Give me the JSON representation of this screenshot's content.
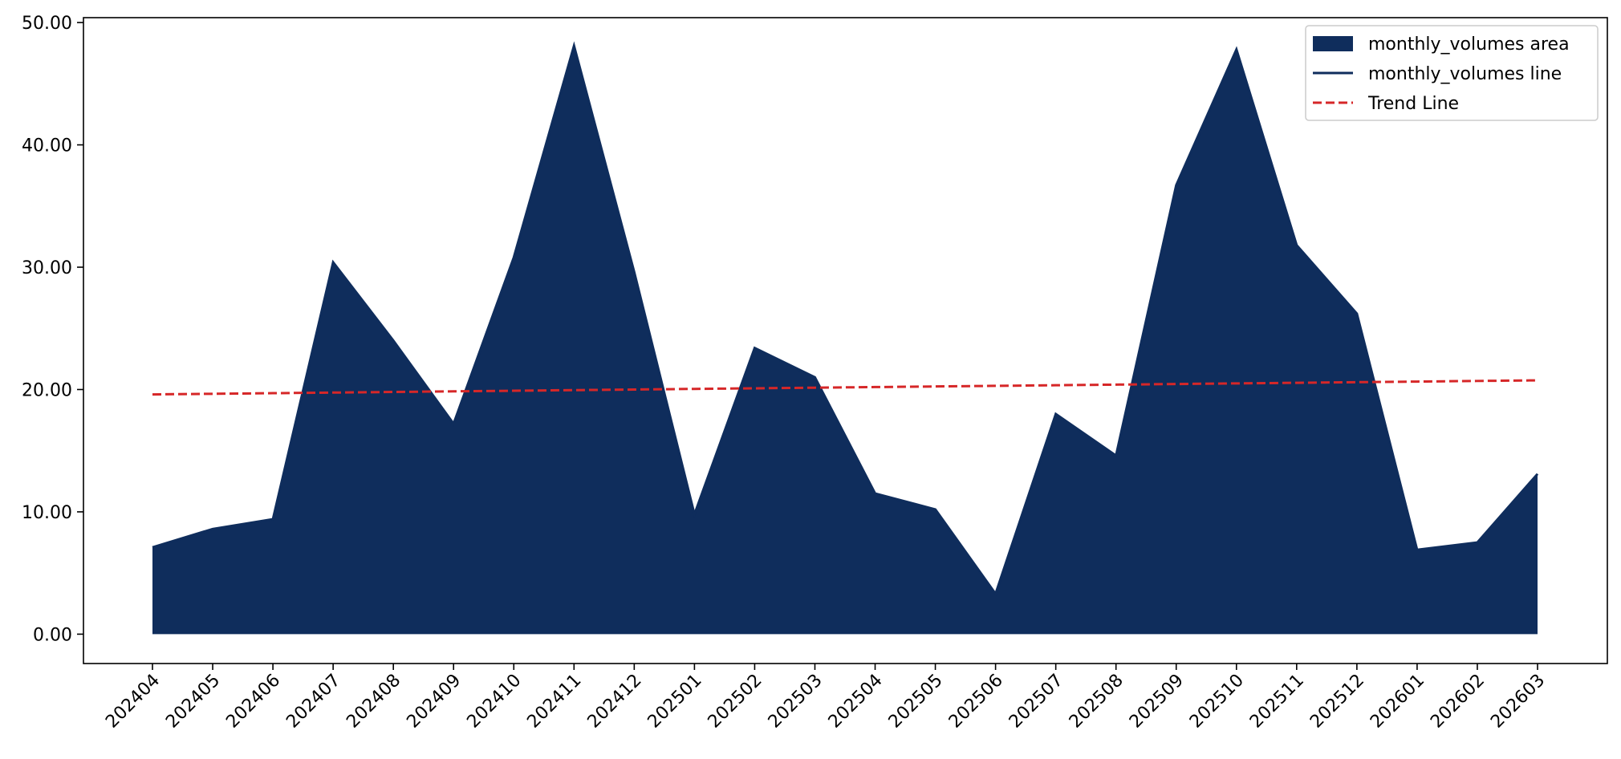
{
  "chart_data": {
    "type": "area",
    "categories": [
      "202404",
      "202405",
      "202406",
      "202407",
      "202408",
      "202409",
      "202410",
      "202411",
      "202412",
      "202501",
      "202502",
      "202503",
      "202504",
      "202505",
      "202506",
      "202507",
      "202508",
      "202509",
      "202510",
      "202511",
      "202512",
      "202601",
      "202602",
      "202603"
    ],
    "series": [
      {
        "name": "monthly_volumes area",
        "kind": "area",
        "color": "#0f2d5c",
        "values": [
          7.1,
          8.6,
          9.4,
          30.4,
          24.0,
          17.2,
          30.8,
          48.1,
          29.6,
          9.8,
          23.4,
          21.0,
          11.5,
          10.2,
          3.3,
          18.0,
          14.6,
          36.7,
          47.8,
          31.8,
          26.2,
          6.9,
          7.5,
          13.1
        ]
      },
      {
        "name": "monthly_volumes line",
        "kind": "line",
        "color": "#0f2d5c",
        "values": [
          7.1,
          8.6,
          9.4,
          30.4,
          24.0,
          17.2,
          30.8,
          48.1,
          29.6,
          9.8,
          23.4,
          21.0,
          11.5,
          10.2,
          3.3,
          18.0,
          14.6,
          36.7,
          47.8,
          31.8,
          26.2,
          6.9,
          7.5,
          13.1
        ]
      },
      {
        "name": "Trend Line",
        "kind": "dashed-line",
        "color": "#d62728",
        "values": [
          19.6,
          19.65,
          19.7,
          19.75,
          19.8,
          19.85,
          19.9,
          19.95,
          20.0,
          20.05,
          20.1,
          20.15,
          20.2,
          20.25,
          20.3,
          20.35,
          20.4,
          20.45,
          20.5,
          20.55,
          20.6,
          20.65,
          20.7,
          20.75
        ]
      }
    ],
    "y_ticks": [
      "0.00",
      "10.00",
      "20.00",
      "30.00",
      "40.00",
      "50.00"
    ],
    "ylim": [
      -2.4,
      50.4
    ],
    "title": "",
    "xlabel": "",
    "ylabel": "",
    "grid": false,
    "legend_position": "top-right"
  }
}
